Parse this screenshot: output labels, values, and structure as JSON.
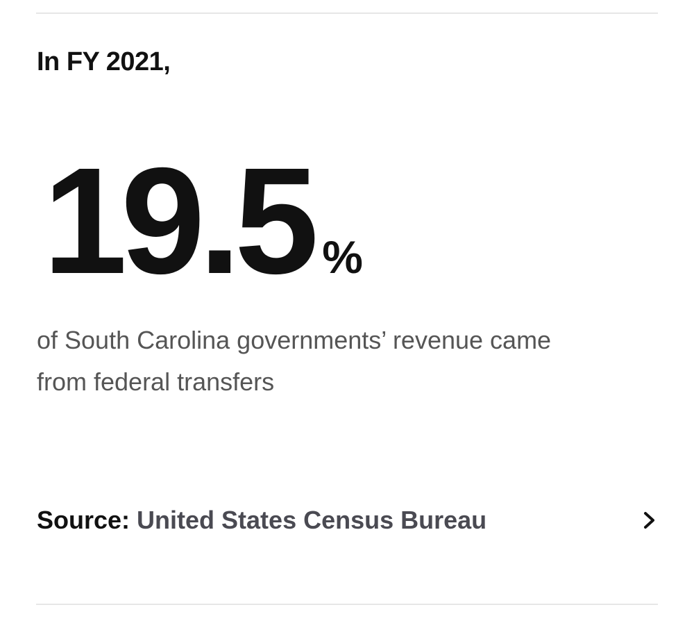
{
  "heading": "In FY 2021,",
  "stat": {
    "value": 19.5,
    "unit": "%"
  },
  "description": "of South Carolina governments’ revenue came from federal transfers",
  "source": {
    "label": "Source:",
    "link": "United States Census Bureau"
  }
}
